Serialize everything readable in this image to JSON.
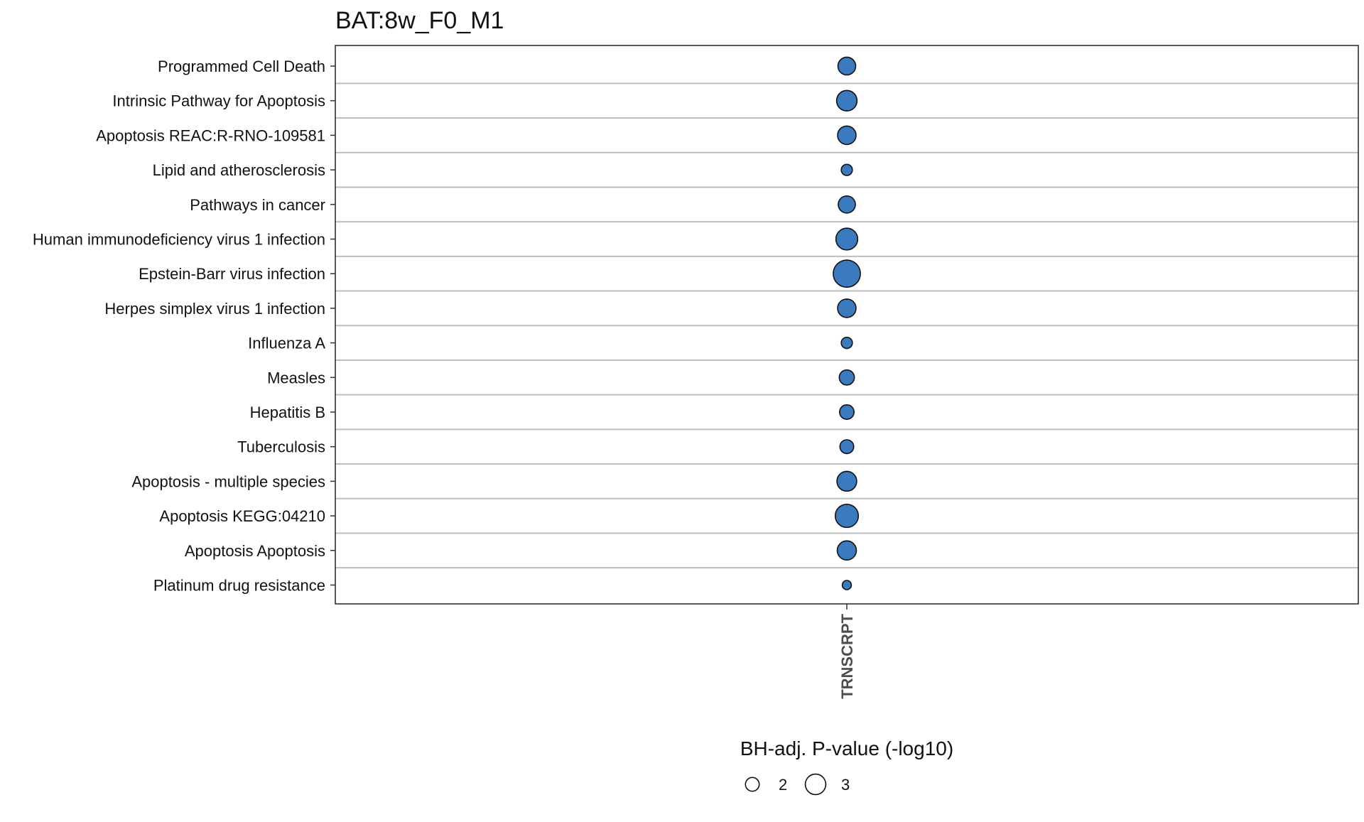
{
  "chart_data": {
    "type": "scatter",
    "title": "BAT:8w_F0_M1",
    "x_categories": [
      "TRNSCRPT"
    ],
    "y_categories": [
      "Programmed Cell Death",
      "Intrinsic Pathway for Apoptosis",
      "Apoptosis REAC:R-RNO-109581",
      "Lipid and atherosclerosis",
      "Pathways in cancer",
      "Human immunodeficiency virus 1 infection",
      "Epstein-Barr virus infection",
      "Herpes simplex virus 1 infection",
      "Influenza A",
      "Measles",
      "Hepatitis B",
      "Tuberculosis",
      "Apoptosis - multiple species",
      "Apoptosis KEGG:04210",
      "Apoptosis Apoptosis",
      "Platinum drug resistance"
    ],
    "series": [
      {
        "x": "TRNSCRPT",
        "values": [
          2.6,
          3.0,
          2.7,
          1.6,
          2.5,
          3.2,
          4.0,
          2.7,
          1.6,
          2.2,
          2.1,
          2.0,
          2.9,
          3.4,
          2.8,
          1.3
        ]
      }
    ],
    "size_legend": {
      "title": "BH-adj. P-value (-log10)",
      "breaks": [
        2,
        3
      ],
      "labels": [
        "2",
        "3"
      ]
    },
    "legend_position": "bottom",
    "grid": "horizontal",
    "point_color": "#3a7bbf"
  }
}
